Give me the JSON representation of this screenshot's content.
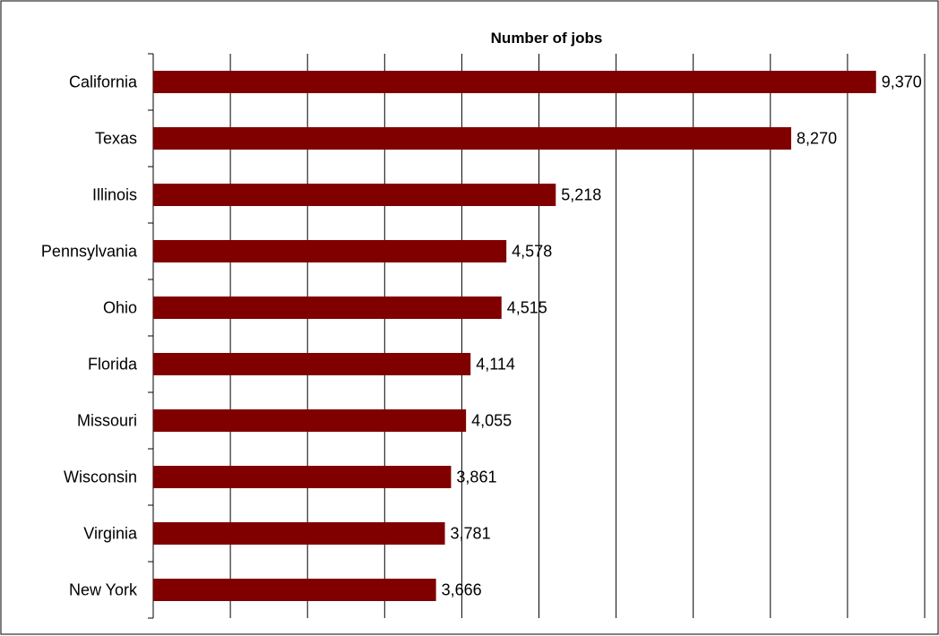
{
  "chart_data": {
    "type": "bar",
    "orientation": "horizontal",
    "title": "Number of jobs",
    "categories": [
      "California",
      "Texas",
      "Illinois",
      "Pennsylvania",
      "Ohio",
      "Florida",
      "Missouri",
      "Wisconsin",
      "Virginia",
      "New York"
    ],
    "values": [
      9370,
      8270,
      5218,
      4578,
      4515,
      4114,
      4055,
      3861,
      3781,
      3666
    ],
    "value_labels": [
      "9,370",
      "8,270",
      "5,218",
      "4,578",
      "4,515",
      "4,114",
      "4,055",
      "3,861",
      "3,781",
      "3,666"
    ],
    "xlim": [
      0,
      10000
    ],
    "x_grid_step": 1000,
    "grid": true,
    "bar_color": "#800000",
    "xlabel": "",
    "ylabel": ""
  }
}
